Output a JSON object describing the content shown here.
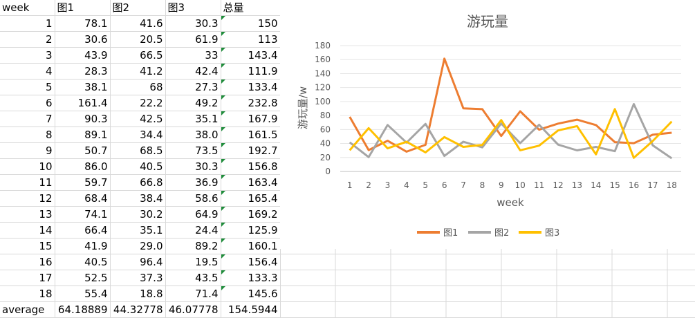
{
  "sheet": {
    "headers": [
      "week",
      "图1",
      "图2",
      "图3",
      "总量"
    ],
    "rows": [
      {
        "week": "1",
        "a": "78.1",
        "b": "41.6",
        "c": "30.3",
        "total": "150"
      },
      {
        "week": "2",
        "a": "30.6",
        "b": "20.5",
        "c": "61.9",
        "total": "113"
      },
      {
        "week": "3",
        "a": "43.9",
        "b": "66.5",
        "c": "33",
        "total": "143.4"
      },
      {
        "week": "4",
        "a": "28.3",
        "b": "41.2",
        "c": "42.4",
        "total": "111.9"
      },
      {
        "week": "5",
        "a": "38.1",
        "b": "68",
        "c": "27.3",
        "total": "133.4"
      },
      {
        "week": "6",
        "a": "161.4",
        "b": "22.2",
        "c": "49.2",
        "total": "232.8"
      },
      {
        "week": "7",
        "a": "90.3",
        "b": "42.5",
        "c": "35.1",
        "total": "167.9"
      },
      {
        "week": "8",
        "a": "89.1",
        "b": "34.4",
        "c": "38.0",
        "total": "161.5"
      },
      {
        "week": "9",
        "a": "50.7",
        "b": "68.5",
        "c": "73.5",
        "total": "192.7"
      },
      {
        "week": "10",
        "a": "86.0",
        "b": "40.5",
        "c": "30.3",
        "total": "156.8"
      },
      {
        "week": "11",
        "a": "59.7",
        "b": "66.8",
        "c": "36.9",
        "total": "163.4"
      },
      {
        "week": "12",
        "a": "68.4",
        "b": "38.4",
        "c": "58.6",
        "total": "165.4"
      },
      {
        "week": "13",
        "a": "74.1",
        "b": "30.2",
        "c": "64.9",
        "total": "169.2"
      },
      {
        "week": "14",
        "a": "66.4",
        "b": "35.1",
        "c": "24.4",
        "total": "125.9"
      },
      {
        "week": "15",
        "a": "41.9",
        "b": "29.0",
        "c": "89.2",
        "total": "160.1"
      },
      {
        "week": "16",
        "a": "40.5",
        "b": "96.4",
        "c": "19.5",
        "total": "156.4"
      },
      {
        "week": "17",
        "a": "52.5",
        "b": "37.3",
        "c": "43.5",
        "total": "133.3"
      },
      {
        "week": "18",
        "a": "55.4",
        "b": "18.8",
        "c": "71.4",
        "total": "145.6"
      }
    ],
    "average": {
      "label": "average",
      "a": "64.18889",
      "b": "44.32778",
      "c": "46.07778",
      "total": "154.5944"
    }
  },
  "chart_data": {
    "type": "line",
    "title": "游玩量",
    "xlabel": "week",
    "ylabel": "游玩量/w",
    "ylim": [
      0,
      180
    ],
    "yticks": [
      0,
      20,
      40,
      60,
      80,
      100,
      120,
      140,
      160,
      180
    ],
    "categories": [
      "1",
      "2",
      "3",
      "4",
      "5",
      "6",
      "7",
      "8",
      "9",
      "10",
      "11",
      "12",
      "13",
      "14",
      "15",
      "16",
      "17",
      "18"
    ],
    "legend_position": "bottom",
    "grid": true,
    "series": [
      {
        "name": "图1",
        "color": "#ED7D31",
        "values": [
          78.1,
          30.6,
          43.9,
          28.3,
          38.1,
          161.4,
          90.3,
          89.1,
          50.7,
          86.0,
          59.7,
          68.4,
          74.1,
          66.4,
          41.9,
          40.5,
          52.5,
          55.4
        ]
      },
      {
        "name": "图2",
        "color": "#A5A5A5",
        "values": [
          41.6,
          20.5,
          66.5,
          41.2,
          68,
          22.2,
          42.5,
          34.4,
          68.5,
          40.5,
          66.8,
          38.4,
          30.2,
          35.1,
          29.0,
          96.4,
          37.3,
          18.8
        ]
      },
      {
        "name": "图3",
        "color": "#FFC000",
        "values": [
          30.3,
          61.9,
          33,
          42.4,
          27.3,
          49.2,
          35.1,
          38.0,
          73.5,
          30.3,
          36.9,
          58.6,
          64.9,
          24.4,
          89.2,
          19.5,
          43.5,
          71.4
        ]
      }
    ]
  }
}
